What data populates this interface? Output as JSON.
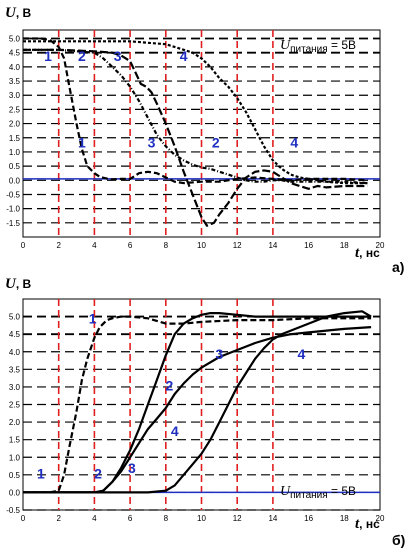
{
  "chart_data": [
    {
      "type": "line",
      "panel_label": "а)",
      "ylabel_var": "U",
      "ylabel_unit": ", В",
      "xlabel_var": "t",
      "xlabel_unit": ", нс",
      "ylim": [
        -2.0,
        5.3
      ],
      "xlim": [
        0,
        20
      ],
      "x_ticks": [
        0,
        2,
        4,
        6,
        8,
        10,
        12,
        14,
        16,
        18,
        20
      ],
      "y_ticks": [
        -1.5,
        -1.0,
        -0.5,
        0.0,
        0.5,
        1.0,
        1.5,
        2.0,
        2.5,
        3.0,
        3.5,
        4.0,
        4.5,
        5.0
      ],
      "red_dashed_x": [
        2,
        4,
        6,
        8,
        10,
        12,
        14
      ],
      "black_dashed_y": [
        5.0,
        4.5
      ],
      "blue_baseline_y": 0.05,
      "annotation_main": "U",
      "annotation_sub": "питания",
      "annotation_rest": " = 5В",
      "series": [
        {
          "x": [
            0,
            1,
            1.5,
            2,
            2.3,
            2.6,
            3,
            3.3,
            3.6,
            4,
            4.3,
            4.7,
            5,
            5.5,
            6,
            6.5,
            7,
            7.5,
            8,
            8.5,
            9,
            10,
            11,
            12,
            13,
            14,
            15,
            16,
            17,
            18,
            19.3
          ],
          "y": [
            5.0,
            5.0,
            4.95,
            4.7,
            4.3,
            3.3,
            2.0,
            1.1,
            0.5,
            0.25,
            0.12,
            0.06,
            0.03,
            0.05,
            0.05,
            0.25,
            0.3,
            0.25,
            0.1,
            -0.05,
            -0.1,
            -0.05,
            -0.05,
            0.05,
            0.1,
            0.05,
            0.0,
            0.05,
            0.05,
            0.05,
            0.0
          ]
        },
        {
          "x": [
            0,
            2,
            3,
            4,
            4.5,
            5,
            5.5,
            6,
            6.5,
            7,
            7.5,
            8,
            8.5,
            9,
            9.5,
            10,
            10.5,
            11,
            11.5,
            12,
            12.5,
            13,
            13.5,
            14,
            14.5,
            15,
            16,
            17,
            18,
            19.3
          ],
          "y": [
            4.6,
            4.6,
            4.55,
            4.5,
            4.3,
            4.0,
            3.7,
            3.3,
            2.8,
            2.2,
            1.6,
            1.2,
            0.9,
            0.7,
            0.55,
            0.45,
            0.4,
            0.3,
            0.2,
            0.1,
            0.0,
            -0.05,
            -0.05,
            0.0,
            0.0,
            -0.05,
            -0.05,
            -0.05,
            -0.05,
            -0.1
          ]
        },
        {
          "x": [
            0,
            2,
            4,
            5,
            5.5,
            6,
            6.3,
            6.6,
            6.9,
            7.2,
            7.5,
            8,
            8.5,
            9,
            9.5,
            10,
            10.3,
            10.7,
            11,
            11.5,
            12,
            12.5,
            13,
            13.5,
            14,
            14.5,
            15,
            15.5,
            16,
            16.5,
            17,
            18,
            19.3
          ],
          "y": [
            4.6,
            4.6,
            4.55,
            4.5,
            4.4,
            4.2,
            3.8,
            3.4,
            3.3,
            3.1,
            2.7,
            2.0,
            1.2,
            0.3,
            -0.5,
            -1.3,
            -1.6,
            -1.5,
            -1.2,
            -0.8,
            -0.3,
            0.1,
            0.3,
            0.35,
            0.3,
            0.1,
            -0.1,
            -0.2,
            -0.3,
            -0.2,
            -0.25,
            -0.2,
            -0.2
          ]
        },
        {
          "x": [
            0,
            2,
            4,
            6,
            7,
            8,
            9,
            9.5,
            10,
            10.5,
            11,
            11.5,
            12,
            12.5,
            13,
            13.5,
            14,
            14.5,
            15,
            15.5,
            16,
            16.5,
            17,
            18,
            19.3
          ],
          "y": [
            4.9,
            4.9,
            4.9,
            4.9,
            4.85,
            4.8,
            4.6,
            4.5,
            4.3,
            4.0,
            3.6,
            3.3,
            2.9,
            2.4,
            1.8,
            1.2,
            0.7,
            0.4,
            0.2,
            0.1,
            0.05,
            0.0,
            -0.05,
            -0.1,
            -0.1
          ]
        }
      ],
      "plot_labels": [
        {
          "text": "1",
          "x": 1.4,
          "y": 4.2
        },
        {
          "text": "2",
          "x": 3.3,
          "y": 4.2
        },
        {
          "text": "3",
          "x": 5.3,
          "y": 4.2
        },
        {
          "text": "4",
          "x": 9.0,
          "y": 4.2
        },
        {
          "text": "1",
          "x": 3.3,
          "y": 1.15
        },
        {
          "text": "3",
          "x": 7.2,
          "y": 1.15
        },
        {
          "text": "2",
          "x": 10.8,
          "y": 1.15
        },
        {
          "text": "4",
          "x": 15.2,
          "y": 1.15
        }
      ]
    },
    {
      "type": "line",
      "panel_label": "б)",
      "ylabel_var": "U",
      "ylabel_unit": ", В",
      "xlabel_var": "t",
      "xlabel_unit": ", нс",
      "ylim": [
        -0.5,
        5.5
      ],
      "xlim": [
        0,
        20
      ],
      "x_ticks": [
        0,
        2,
        4,
        6,
        8,
        10,
        12,
        14,
        16,
        18,
        20
      ],
      "y_ticks": [
        -0.5,
        0.0,
        0.5,
        1.0,
        1.5,
        2.0,
        2.5,
        3.0,
        3.5,
        4.0,
        4.5,
        5.0
      ],
      "red_dashed_x": [
        2,
        4,
        6,
        8,
        10,
        12,
        14
      ],
      "black_dashed_y": [
        5.0,
        4.5
      ],
      "blue_baseline_y": 0.0,
      "annotation_main": "U",
      "annotation_sub": "питания",
      "annotation_rest": " = 5В",
      "series": [
        {
          "x": [
            0,
            1,
            1.5,
            2,
            2.3,
            2.6,
            3,
            3.3,
            3.6,
            4,
            4.3,
            4.7,
            5,
            5.5,
            6,
            7,
            8,
            9,
            10,
            12,
            14,
            16,
            18,
            19.5
          ],
          "y": [
            0,
            0,
            0,
            0.05,
            0.5,
            1.3,
            2.3,
            3.2,
            3.8,
            4.4,
            4.7,
            4.9,
            4.95,
            5.0,
            5.0,
            4.95,
            4.8,
            4.8,
            4.85,
            4.9,
            4.9,
            4.95,
            4.95,
            4.95
          ]
        },
        {
          "x": [
            0,
            4,
            4.5,
            5,
            5.5,
            6,
            6.5,
            7,
            7.5,
            8,
            8.5,
            9,
            9.5,
            10,
            10.5,
            11,
            12,
            13,
            14,
            15,
            16,
            17,
            18,
            19.5
          ],
          "y": [
            0,
            0,
            0.05,
            0.3,
            0.7,
            1.2,
            1.8,
            2.5,
            3.2,
            3.9,
            4.5,
            4.8,
            4.95,
            5.05,
            5.1,
            5.1,
            5.05,
            5.0,
            5.0,
            5.0,
            5.0,
            5.0,
            5.0,
            5.0
          ]
        },
        {
          "x": [
            0,
            4,
            4.5,
            5,
            5.5,
            6,
            6.5,
            7,
            7.5,
            8,
            8.5,
            9,
            9.5,
            10,
            11,
            12,
            13,
            14,
            15,
            16,
            17,
            18,
            19.5
          ],
          "y": [
            0,
            0,
            0.05,
            0.3,
            0.6,
            1.0,
            1.4,
            1.8,
            2.1,
            2.4,
            2.8,
            3.1,
            3.35,
            3.55,
            3.85,
            4.05,
            4.25,
            4.4,
            4.5,
            4.55,
            4.6,
            4.65,
            4.7
          ]
        },
        {
          "x": [
            0,
            7,
            8,
            8.5,
            9,
            9.5,
            10,
            10.5,
            11,
            11.5,
            12,
            12.5,
            13,
            13.5,
            14,
            14.5,
            15,
            15.5,
            16,
            17,
            18,
            19,
            19.5
          ],
          "y": [
            0,
            0,
            0.05,
            0.2,
            0.5,
            0.8,
            1.1,
            1.5,
            2.0,
            2.5,
            3.0,
            3.4,
            3.8,
            4.1,
            4.35,
            4.5,
            4.6,
            4.7,
            4.8,
            5.0,
            5.1,
            5.15,
            5.0
          ]
        }
      ],
      "plot_labels": [
        {
          "text": "1",
          "x": 3.9,
          "y": 4.8
        },
        {
          "text": "2",
          "x": 8.2,
          "y": 2.9
        },
        {
          "text": "3",
          "x": 11.0,
          "y": 3.8
        },
        {
          "text": "4",
          "x": 15.6,
          "y": 3.8
        },
        {
          "text": "1",
          "x": 1.0,
          "y": 0.4
        },
        {
          "text": "2",
          "x": 4.2,
          "y": 0.4
        },
        {
          "text": "3",
          "x": 6.1,
          "y": 0.55
        },
        {
          "text": "4",
          "x": 8.5,
          "y": 1.6
        }
      ]
    }
  ]
}
